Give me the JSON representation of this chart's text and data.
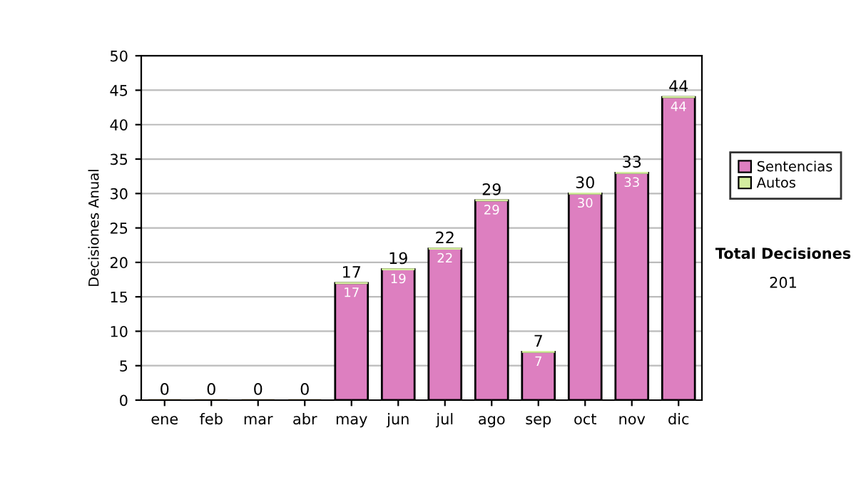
{
  "chart_data": {
    "type": "bar",
    "stacked": true,
    "ylabel": "Decisiones Anual",
    "categories": [
      "ene",
      "feb",
      "mar",
      "abr",
      "may",
      "jun",
      "jul",
      "ago",
      "sep",
      "oct",
      "nov",
      "dic"
    ],
    "series": [
      {
        "name": "Sentencias",
        "color": "#dd7fc0",
        "values": [
          0,
          0,
          0,
          0,
          17,
          19,
          22,
          29,
          7,
          30,
          33,
          44
        ],
        "value_labels": [
          null,
          null,
          null,
          null,
          "17",
          "19",
          "22",
          "29",
          "7",
          "30",
          "33",
          "44"
        ]
      },
      {
        "name": "Autos",
        "color": "#d4ee9f",
        "values": [
          0,
          0,
          0,
          0,
          0,
          0,
          0,
          0,
          0,
          0,
          0,
          0
        ]
      }
    ],
    "totals": [
      "0",
      "0",
      "0",
      "0",
      "17",
      "19",
      "22",
      "29",
      "7",
      "30",
      "33",
      "44"
    ],
    "ylim": [
      0,
      50
    ],
    "yticks": [
      0,
      5,
      10,
      15,
      20,
      25,
      30,
      35,
      40,
      45,
      50
    ],
    "grid": "y",
    "legend": "right",
    "annotations": [
      "Total Decisiones",
      "201"
    ]
  }
}
